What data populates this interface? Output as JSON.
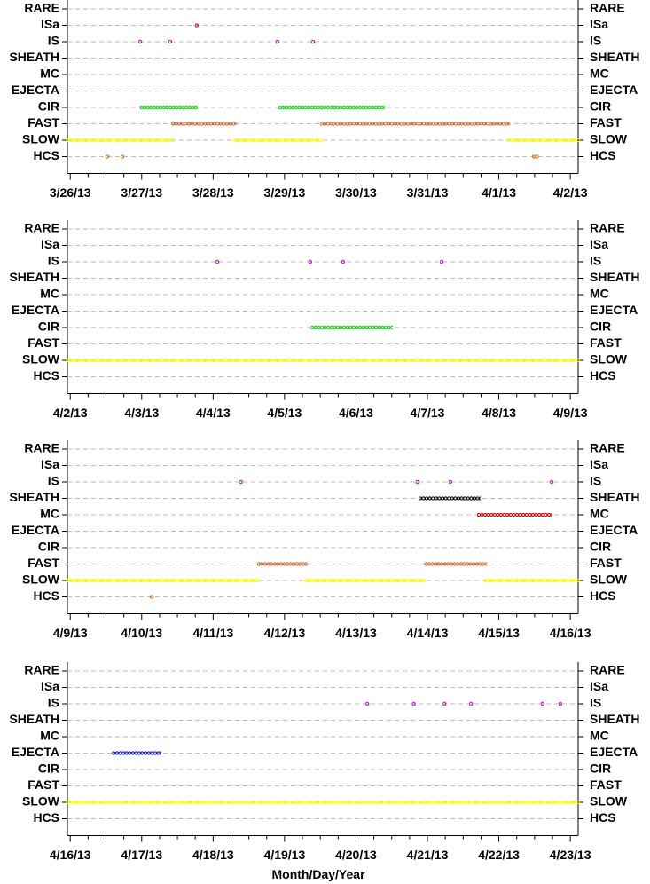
{
  "chart_data": [
    {
      "type": "event-timeline",
      "categories": [
        "RARE",
        "ISa",
        "IS",
        "SHEATH",
        "MC",
        "EJECTA",
        "CIR",
        "FAST",
        "SLOW",
        "HCS"
      ],
      "xlim": [
        -0.04,
        7.11
      ],
      "xticks": [
        {
          "value": 0,
          "label": "3/26/13"
        },
        {
          "value": 1,
          "label": "3/27/13"
        },
        {
          "value": 2,
          "label": "3/28/13"
        },
        {
          "value": 3,
          "label": "3/29/13"
        },
        {
          "value": 4,
          "label": "3/30/13"
        },
        {
          "value": 5,
          "label": "3/31/13"
        },
        {
          "value": 6,
          "label": "4/1/13"
        },
        {
          "value": 7,
          "label": "4/2/13"
        }
      ],
      "grid": true,
      "series": [
        {
          "name": "ISa",
          "color": "#cc0000",
          "values": [
            [
              1.77,
              1.77
            ]
          ]
        },
        {
          "name": "IS",
          "color": "#cc00cc",
          "values": [
            [
              0.98,
              0.98
            ],
            [
              1.4,
              1.4
            ],
            [
              2.9,
              2.9
            ],
            [
              3.4,
              3.4
            ]
          ]
        },
        {
          "name": "CIR",
          "color": "#00dd00",
          "values": [
            [
              1.0,
              1.76
            ],
            [
              2.94,
              4.38
            ]
          ]
        },
        {
          "name": "FAST",
          "color": "#c8642d",
          "values": [
            [
              1.44,
              2.3
            ],
            [
              3.52,
              6.13
            ]
          ]
        },
        {
          "name": "SLOW",
          "color": "#ffff00",
          "values": [
            [
              -0.04,
              1.43
            ],
            [
              2.3,
              3.5
            ],
            [
              6.13,
              7.11
            ]
          ]
        },
        {
          "name": "HCS",
          "color": "#dd6600",
          "values": [
            [
              0.52,
              0.52
            ],
            [
              0.73,
              0.73
            ],
            [
              6.49,
              6.53
            ]
          ]
        }
      ]
    },
    {
      "type": "event-timeline",
      "categories": [
        "RARE",
        "ISa",
        "IS",
        "SHEATH",
        "MC",
        "EJECTA",
        "CIR",
        "FAST",
        "SLOW",
        "HCS"
      ],
      "xlim": [
        -0.04,
        7.11
      ],
      "xticks": [
        {
          "value": 0,
          "label": "4/2/13"
        },
        {
          "value": 1,
          "label": "4/3/13"
        },
        {
          "value": 2,
          "label": "4/4/13"
        },
        {
          "value": 3,
          "label": "4/5/13"
        },
        {
          "value": 4,
          "label": "4/6/13"
        },
        {
          "value": 5,
          "label": "4/7/13"
        },
        {
          "value": 6,
          "label": "4/8/13"
        },
        {
          "value": 7,
          "label": "4/9/13"
        }
      ],
      "grid": true,
      "series": [
        {
          "name": "IS",
          "color": "#cc00cc",
          "values": [
            [
              2.06,
              2.06
            ],
            [
              3.36,
              3.36
            ],
            [
              3.82,
              3.82
            ],
            [
              5.2,
              5.2
            ]
          ]
        },
        {
          "name": "CIR",
          "color": "#00dd00",
          "values": [
            [
              3.39,
              4.49
            ]
          ]
        },
        {
          "name": "SLOW",
          "color": "#ffff00",
          "values": [
            [
              -0.04,
              7.11
            ]
          ]
        }
      ]
    },
    {
      "type": "event-timeline",
      "categories": [
        "RARE",
        "ISa",
        "IS",
        "SHEATH",
        "MC",
        "EJECTA",
        "CIR",
        "FAST",
        "SLOW",
        "HCS"
      ],
      "xlim": [
        -0.04,
        7.11
      ],
      "xticks": [
        {
          "value": 0,
          "label": "4/9/13"
        },
        {
          "value": 1,
          "label": "4/10/13"
        },
        {
          "value": 2,
          "label": "4/11/13"
        },
        {
          "value": 3,
          "label": "4/12/13"
        },
        {
          "value": 4,
          "label": "4/13/13"
        },
        {
          "value": 5,
          "label": "4/14/13"
        },
        {
          "value": 6,
          "label": "4/15/13"
        },
        {
          "value": 7,
          "label": "4/16/13"
        }
      ],
      "grid": true,
      "series": [
        {
          "name": "IS",
          "color": "#cc00cc",
          "values": [
            [
              2.39,
              2.39
            ],
            [
              4.86,
              4.86
            ],
            [
              5.32,
              5.32
            ],
            [
              6.74,
              6.74
            ]
          ]
        },
        {
          "name": "SHEATH",
          "color": "#000000",
          "values": [
            [
              4.9,
              5.72
            ]
          ]
        },
        {
          "name": "MC",
          "color": "#cc0000",
          "values": [
            [
              5.72,
              6.72
            ]
          ]
        },
        {
          "name": "FAST",
          "color": "#c8642d",
          "values": [
            [
              2.64,
              3.3
            ],
            [
              4.98,
              5.81
            ]
          ]
        },
        {
          "name": "SLOW",
          "color": "#ffff00",
          "values": [
            [
              -0.04,
              2.63
            ],
            [
              3.3,
              4.95
            ],
            [
              5.81,
              7.11
            ]
          ]
        },
        {
          "name": "HCS",
          "color": "#dd6600",
          "values": [
            [
              1.14,
              1.14
            ]
          ]
        }
      ]
    },
    {
      "type": "event-timeline",
      "categories": [
        "RARE",
        "ISa",
        "IS",
        "SHEATH",
        "MC",
        "EJECTA",
        "CIR",
        "FAST",
        "SLOW",
        "HCS"
      ],
      "x_label": "Month/Day/Year",
      "xlim": [
        -0.04,
        7.11
      ],
      "xticks": [
        {
          "value": 0,
          "label": "4/16/13"
        },
        {
          "value": 1,
          "label": "4/17/13"
        },
        {
          "value": 2,
          "label": "4/18/13"
        },
        {
          "value": 3,
          "label": "4/19/13"
        },
        {
          "value": 4,
          "label": "4/20/13"
        },
        {
          "value": 5,
          "label": "4/21/13"
        },
        {
          "value": 6,
          "label": "4/22/13"
        },
        {
          "value": 7,
          "label": "4/23/13"
        }
      ],
      "grid": true,
      "series": [
        {
          "name": "IS",
          "color": "#cc00cc",
          "values": [
            [
              4.16,
              4.16
            ],
            [
              4.81,
              4.81
            ],
            [
              5.24,
              5.24
            ],
            [
              5.61,
              5.61
            ],
            [
              6.61,
              6.61
            ],
            [
              6.86,
              6.86
            ]
          ]
        },
        {
          "name": "EJECTA",
          "color": "#0000cc",
          "values": [
            [
              0.61,
              1.25
            ]
          ]
        },
        {
          "name": "SLOW",
          "color": "#ffff00",
          "values": [
            [
              -0.04,
              7.11
            ]
          ]
        }
      ]
    }
  ]
}
